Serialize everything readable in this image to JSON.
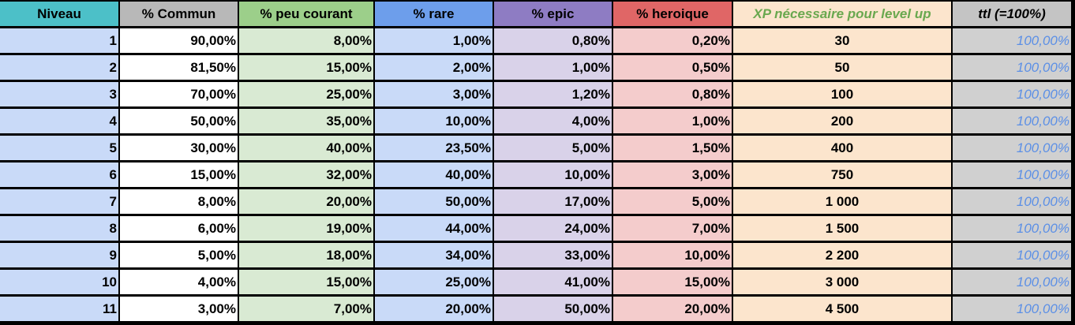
{
  "headers": {
    "niveau": "Niveau",
    "commun": "% Commun",
    "peu_courant": "% peu courant",
    "rare": "% rare",
    "epic": "% epic",
    "heroique": "% heroique",
    "xp": "XP nécessaire pour level up",
    "ttl": "ttl (=100%)"
  },
  "colors": {
    "niveau_header": "#4cc0c8",
    "commun_header": "#b8b8b8",
    "peu_courant_header": "#9ccf8a",
    "rare_header": "#6d9eeb",
    "epic_header": "#8e7cc3",
    "heroique_header": "#e06666",
    "xp_header": "#fce5cd",
    "ttl_header": "#c4c4c4",
    "niveau_cell": "#c9daf8",
    "commun_cell": "#ffffff",
    "peu_courant_cell": "#d9ead3",
    "rare_cell": "#c9daf8",
    "epic_cell": "#d9d2e9",
    "heroique_cell": "#f4cccc",
    "xp_cell": "#fce5cd",
    "ttl_cell": "#d0d0d0"
  },
  "rows": [
    {
      "niveau": "1",
      "commun": "90,00%",
      "peu_courant": "8,00%",
      "rare": "1,00%",
      "epic": "0,80%",
      "heroique": "0,20%",
      "xp": "30",
      "ttl": "100,00%"
    },
    {
      "niveau": "2",
      "commun": "81,50%",
      "peu_courant": "15,00%",
      "rare": "2,00%",
      "epic": "1,00%",
      "heroique": "0,50%",
      "xp": "50",
      "ttl": "100,00%"
    },
    {
      "niveau": "3",
      "commun": "70,00%",
      "peu_courant": "25,00%",
      "rare": "3,00%",
      "epic": "1,20%",
      "heroique": "0,80%",
      "xp": "100",
      "ttl": "100,00%"
    },
    {
      "niveau": "4",
      "commun": "50,00%",
      "peu_courant": "35,00%",
      "rare": "10,00%",
      "epic": "4,00%",
      "heroique": "1,00%",
      "xp": "200",
      "ttl": "100,00%"
    },
    {
      "niveau": "5",
      "commun": "30,00%",
      "peu_courant": "40,00%",
      "rare": "23,50%",
      "epic": "5,00%",
      "heroique": "1,50%",
      "xp": "400",
      "ttl": "100,00%"
    },
    {
      "niveau": "6",
      "commun": "15,00%",
      "peu_courant": "32,00%",
      "rare": "40,00%",
      "epic": "10,00%",
      "heroique": "3,00%",
      "xp": "750",
      "ttl": "100,00%"
    },
    {
      "niveau": "7",
      "commun": "8,00%",
      "peu_courant": "20,00%",
      "rare": "50,00%",
      "epic": "17,00%",
      "heroique": "5,00%",
      "xp": "1 000",
      "ttl": "100,00%"
    },
    {
      "niveau": "8",
      "commun": "6,00%",
      "peu_courant": "19,00%",
      "rare": "44,00%",
      "epic": "24,00%",
      "heroique": "7,00%",
      "xp": "1 500",
      "ttl": "100,00%"
    },
    {
      "niveau": "9",
      "commun": "5,00%",
      "peu_courant": "18,00%",
      "rare": "34,00%",
      "epic": "33,00%",
      "heroique": "10,00%",
      "xp": "2 200",
      "ttl": "100,00%"
    },
    {
      "niveau": "10",
      "commun": "4,00%",
      "peu_courant": "15,00%",
      "rare": "25,00%",
      "epic": "41,00%",
      "heroique": "15,00%",
      "xp": "3 000",
      "ttl": "100,00%"
    },
    {
      "niveau": "11",
      "commun": "3,00%",
      "peu_courant": "7,00%",
      "rare": "20,00%",
      "epic": "50,00%",
      "heroique": "20,00%",
      "xp": "4 500",
      "ttl": "100,00%"
    }
  ]
}
